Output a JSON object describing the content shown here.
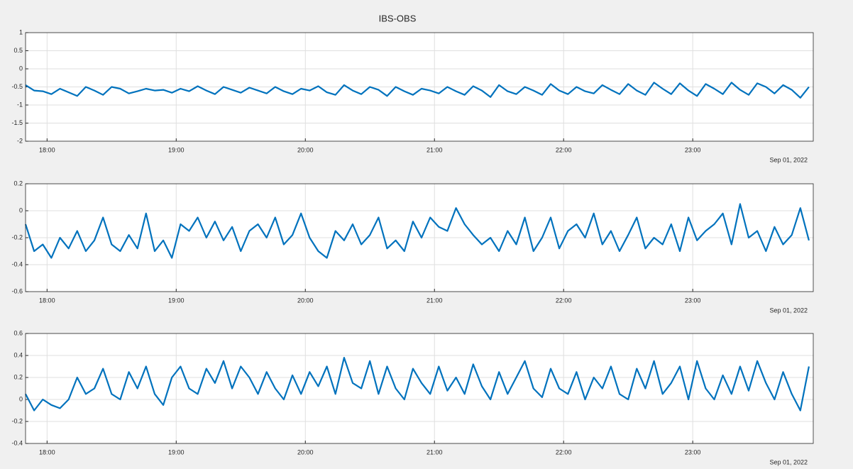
{
  "chart_data": [
    {
      "type": "line",
      "title": "IBS-OBS",
      "x_date_label": "Sep 01, 2022",
      "x": [
        "17:50",
        "17:54",
        "17:58",
        "18:02",
        "18:06",
        "18:10",
        "18:14",
        "18:18",
        "18:22",
        "18:26",
        "18:30",
        "18:34",
        "18:38",
        "18:42",
        "18:46",
        "18:50",
        "18:54",
        "18:58",
        "19:02",
        "19:06",
        "19:10",
        "19:14",
        "19:18",
        "19:22",
        "19:26",
        "19:30",
        "19:34",
        "19:38",
        "19:42",
        "19:46",
        "19:50",
        "19:54",
        "19:58",
        "20:02",
        "20:06",
        "20:10",
        "20:14",
        "20:18",
        "20:22",
        "20:26",
        "20:30",
        "20:34",
        "20:38",
        "20:42",
        "20:46",
        "20:50",
        "20:54",
        "20:58",
        "21:02",
        "21:06",
        "21:10",
        "21:14",
        "21:18",
        "21:22",
        "21:26",
        "21:30",
        "21:34",
        "21:38",
        "21:42",
        "21:46",
        "21:50",
        "21:54",
        "21:58",
        "22:02",
        "22:06",
        "22:10",
        "22:14",
        "22:18",
        "22:22",
        "22:26",
        "22:30",
        "22:34",
        "22:38",
        "22:42",
        "22:46",
        "22:50",
        "22:54",
        "22:58",
        "23:02",
        "23:06",
        "23:10",
        "23:14",
        "23:18",
        "23:22",
        "23:26",
        "23:30",
        "23:34",
        "23:38",
        "23:42",
        "23:46",
        "23:50",
        "23:54"
      ],
      "series": [
        {
          "color": "#0072bd",
          "values": [
            -0.45,
            -0.6,
            -0.62,
            -0.7,
            -0.55,
            -0.65,
            -0.75,
            -0.5,
            -0.6,
            -0.72,
            -0.5,
            -0.55,
            -0.68,
            -0.62,
            -0.55,
            -0.6,
            -0.58,
            -0.66,
            -0.55,
            -0.62,
            -0.48,
            -0.6,
            -0.7,
            -0.5,
            -0.58,
            -0.66,
            -0.52,
            -0.6,
            -0.68,
            -0.5,
            -0.62,
            -0.7,
            -0.55,
            -0.6,
            -0.48,
            -0.65,
            -0.72,
            -0.45,
            -0.6,
            -0.7,
            -0.5,
            -0.58,
            -0.75,
            -0.5,
            -0.62,
            -0.72,
            -0.55,
            -0.6,
            -0.68,
            -0.5,
            -0.62,
            -0.72,
            -0.48,
            -0.6,
            -0.78,
            -0.45,
            -0.62,
            -0.7,
            -0.5,
            -0.6,
            -0.72,
            -0.42,
            -0.6,
            -0.7,
            -0.5,
            -0.62,
            -0.68,
            -0.45,
            -0.58,
            -0.7,
            -0.42,
            -0.6,
            -0.72,
            -0.38,
            -0.55,
            -0.7,
            -0.4,
            -0.6,
            -0.75,
            -0.42,
            -0.55,
            -0.7,
            -0.38,
            -0.58,
            -0.72,
            -0.4,
            -0.5,
            -0.68,
            -0.45,
            -0.58,
            -0.8,
            -0.5
          ]
        }
      ],
      "xlim": [
        "17:50",
        "23:56"
      ],
      "xticks": [
        "18:00",
        "19:00",
        "20:00",
        "21:00",
        "22:00",
        "23:00"
      ],
      "ylim": [
        -2,
        1
      ],
      "yticks": [
        -2,
        -1.5,
        -1,
        -0.5,
        0,
        0.5,
        1
      ],
      "grid": true
    },
    {
      "type": "line",
      "x_date_label": "Sep 01, 2022",
      "x": [
        "17:50",
        "17:54",
        "17:58",
        "18:02",
        "18:06",
        "18:10",
        "18:14",
        "18:18",
        "18:22",
        "18:26",
        "18:30",
        "18:34",
        "18:38",
        "18:42",
        "18:46",
        "18:50",
        "18:54",
        "18:58",
        "19:02",
        "19:06",
        "19:10",
        "19:14",
        "19:18",
        "19:22",
        "19:26",
        "19:30",
        "19:34",
        "19:38",
        "19:42",
        "19:46",
        "19:50",
        "19:54",
        "19:58",
        "20:02",
        "20:06",
        "20:10",
        "20:14",
        "20:18",
        "20:22",
        "20:26",
        "20:30",
        "20:34",
        "20:38",
        "20:42",
        "20:46",
        "20:50",
        "20:54",
        "20:58",
        "21:02",
        "21:06",
        "21:10",
        "21:14",
        "21:18",
        "21:22",
        "21:26",
        "21:30",
        "21:34",
        "21:38",
        "21:42",
        "21:46",
        "21:50",
        "21:54",
        "21:58",
        "22:02",
        "22:06",
        "22:10",
        "22:14",
        "22:18",
        "22:22",
        "22:26",
        "22:30",
        "22:34",
        "22:38",
        "22:42",
        "22:46",
        "22:50",
        "22:54",
        "22:58",
        "23:02",
        "23:06",
        "23:10",
        "23:14",
        "23:18",
        "23:22",
        "23:26",
        "23:30",
        "23:34",
        "23:38",
        "23:42",
        "23:46",
        "23:50",
        "23:54"
      ],
      "series": [
        {
          "color": "#0072bd",
          "values": [
            -0.1,
            -0.3,
            -0.25,
            -0.35,
            -0.2,
            -0.28,
            -0.15,
            -0.3,
            -0.22,
            -0.05,
            -0.25,
            -0.3,
            -0.18,
            -0.28,
            -0.02,
            -0.3,
            -0.22,
            -0.35,
            -0.1,
            -0.15,
            -0.05,
            -0.2,
            -0.08,
            -0.22,
            -0.12,
            -0.3,
            -0.15,
            -0.1,
            -0.2,
            -0.05,
            -0.25,
            -0.18,
            -0.02,
            -0.2,
            -0.3,
            -0.35,
            -0.15,
            -0.22,
            -0.1,
            -0.25,
            -0.18,
            -0.05,
            -0.28,
            -0.22,
            -0.3,
            -0.08,
            -0.2,
            -0.05,
            -0.12,
            -0.15,
            0.02,
            -0.1,
            -0.18,
            -0.25,
            -0.2,
            -0.3,
            -0.15,
            -0.25,
            -0.05,
            -0.3,
            -0.2,
            -0.05,
            -0.28,
            -0.15,
            -0.1,
            -0.2,
            -0.02,
            -0.25,
            -0.15,
            -0.3,
            -0.18,
            -0.05,
            -0.28,
            -0.2,
            -0.25,
            -0.1,
            -0.3,
            -0.05,
            -0.22,
            -0.15,
            -0.1,
            -0.02,
            -0.25,
            0.05,
            -0.2,
            -0.15,
            -0.3,
            -0.12,
            -0.25,
            -0.18,
            0.02,
            -0.22
          ]
        }
      ],
      "xlim": [
        "17:50",
        "23:56"
      ],
      "xticks": [
        "18:00",
        "19:00",
        "20:00",
        "21:00",
        "22:00",
        "23:00"
      ],
      "ylim": [
        -0.6,
        0.2
      ],
      "yticks": [
        -0.6,
        -0.4,
        -0.2,
        0,
        0.2
      ],
      "grid": true
    },
    {
      "type": "line",
      "x_date_label": "Sep 01, 2022",
      "x": [
        "17:50",
        "17:54",
        "17:58",
        "18:02",
        "18:06",
        "18:10",
        "18:14",
        "18:18",
        "18:22",
        "18:26",
        "18:30",
        "18:34",
        "18:38",
        "18:42",
        "18:46",
        "18:50",
        "18:54",
        "18:58",
        "19:02",
        "19:06",
        "19:10",
        "19:14",
        "19:18",
        "19:22",
        "19:26",
        "19:30",
        "19:34",
        "19:38",
        "19:42",
        "19:46",
        "19:50",
        "19:54",
        "19:58",
        "20:02",
        "20:06",
        "20:10",
        "20:14",
        "20:18",
        "20:22",
        "20:26",
        "20:30",
        "20:34",
        "20:38",
        "20:42",
        "20:46",
        "20:50",
        "20:54",
        "20:58",
        "21:02",
        "21:06",
        "21:10",
        "21:14",
        "21:18",
        "21:22",
        "21:26",
        "21:30",
        "21:34",
        "21:38",
        "21:42",
        "21:46",
        "21:50",
        "21:54",
        "21:58",
        "22:02",
        "22:06",
        "22:10",
        "22:14",
        "22:18",
        "22:22",
        "22:26",
        "22:30",
        "22:34",
        "22:38",
        "22:42",
        "22:46",
        "22:50",
        "22:54",
        "22:58",
        "23:02",
        "23:06",
        "23:10",
        "23:14",
        "23:18",
        "23:22",
        "23:26",
        "23:30",
        "23:34",
        "23:38",
        "23:42",
        "23:46",
        "23:50",
        "23:54"
      ],
      "series": [
        {
          "color": "#0072bd",
          "values": [
            0.05,
            -0.1,
            0.0,
            -0.05,
            -0.08,
            0.0,
            0.2,
            0.05,
            0.1,
            0.28,
            0.05,
            0.0,
            0.25,
            0.1,
            0.3,
            0.05,
            -0.05,
            0.2,
            0.3,
            0.1,
            0.05,
            0.28,
            0.15,
            0.35,
            0.1,
            0.3,
            0.2,
            0.05,
            0.25,
            0.1,
            0.0,
            0.22,
            0.05,
            0.25,
            0.12,
            0.3,
            0.05,
            0.38,
            0.15,
            0.1,
            0.35,
            0.05,
            0.3,
            0.1,
            0.0,
            0.28,
            0.15,
            0.05,
            0.3,
            0.08,
            0.2,
            0.05,
            0.32,
            0.12,
            0.0,
            0.25,
            0.05,
            0.2,
            0.35,
            0.1,
            0.02,
            0.28,
            0.1,
            0.05,
            0.25,
            0.0,
            0.2,
            0.1,
            0.3,
            0.05,
            0.0,
            0.28,
            0.1,
            0.35,
            0.05,
            0.15,
            0.3,
            0.0,
            0.35,
            0.1,
            0.0,
            0.22,
            0.05,
            0.3,
            0.08,
            0.35,
            0.15,
            0.0,
            0.25,
            0.05,
            -0.1,
            0.3
          ]
        }
      ],
      "xlim": [
        "17:50",
        "23:56"
      ],
      "xticks": [
        "18:00",
        "19:00",
        "20:00",
        "21:00",
        "22:00",
        "23:00"
      ],
      "ylim": [
        -0.4,
        0.6
      ],
      "yticks": [
        -0.4,
        -0.2,
        0,
        0.2,
        0.4,
        0.6
      ],
      "grid": true
    }
  ]
}
